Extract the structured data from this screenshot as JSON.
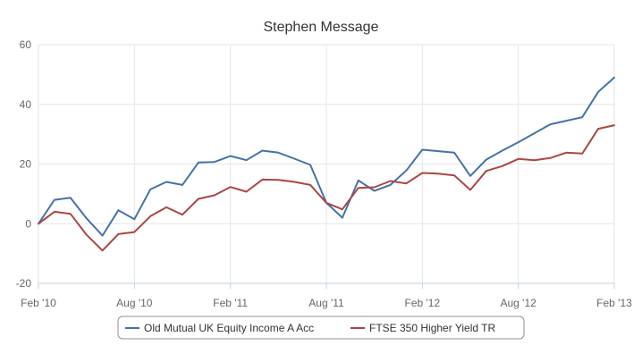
{
  "chart_data": {
    "type": "line",
    "title": "Stephen Message",
    "xlabel": "",
    "ylabel": "",
    "ylim": [
      -20,
      60
    ],
    "yticks": [
      -20,
      0,
      20,
      40,
      60
    ],
    "xlim": [
      "2010-02",
      "2013-02"
    ],
    "xticks": [
      {
        "date": "2010-02",
        "label": "Feb '10"
      },
      {
        "date": "2010-08",
        "label": "Aug '10"
      },
      {
        "date": "2011-02",
        "label": "Feb '11"
      },
      {
        "date": "2011-08",
        "label": "Aug '11"
      },
      {
        "date": "2012-02",
        "label": "Feb '12"
      },
      {
        "date": "2012-08",
        "label": "Aug '12"
      },
      {
        "date": "2013-02",
        "label": "Feb '13"
      }
    ],
    "grid": true,
    "legend_position": "bottom",
    "x": [
      "2010-02",
      "2010-03",
      "2010-04",
      "2010-05",
      "2010-06",
      "2010-07",
      "2010-08",
      "2010-09",
      "2010-10",
      "2010-11",
      "2010-12",
      "2011-01",
      "2011-02",
      "2011-03",
      "2011-04",
      "2011-05",
      "2011-06",
      "2011-07",
      "2011-08",
      "2011-09",
      "2011-10",
      "2011-11",
      "2011-12",
      "2012-01",
      "2012-02",
      "2012-03",
      "2012-04",
      "2012-05",
      "2012-06",
      "2012-07",
      "2012-08",
      "2012-09",
      "2012-10",
      "2012-11",
      "2012-12",
      "2013-01",
      "2013-02"
    ],
    "series": [
      {
        "name": "Old Mutual UK Equity Income A Acc",
        "color": "#4572a7",
        "values": [
          0,
          8,
          8.7,
          1.8,
          -4,
          4.5,
          1.5,
          11.5,
          14,
          13,
          20.5,
          20.7,
          22.7,
          21.3,
          24.5,
          23.8,
          21.8,
          19.7,
          7,
          2,
          14.5,
          11,
          13,
          17.8,
          24.8,
          24.3,
          23.8,
          16,
          21.5,
          24.5,
          27.3,
          30.3,
          33.3,
          34.5,
          35.7,
          44.2,
          49
        ]
      },
      {
        "name": "FTSE 350 Higher Yield TR",
        "color": "#aa4643",
        "values": [
          0,
          4,
          3.3,
          -3.7,
          -9,
          -3.5,
          -2.8,
          2.5,
          5.5,
          3,
          8.3,
          9.5,
          12.3,
          10.7,
          14.8,
          14.7,
          14,
          13,
          7,
          4.8,
          12,
          12.2,
          14.3,
          13.5,
          17,
          16.8,
          16.2,
          11.3,
          17.7,
          19.3,
          21.7,
          21.3,
          22,
          23.8,
          23.5,
          31.8,
          33
        ]
      }
    ]
  }
}
